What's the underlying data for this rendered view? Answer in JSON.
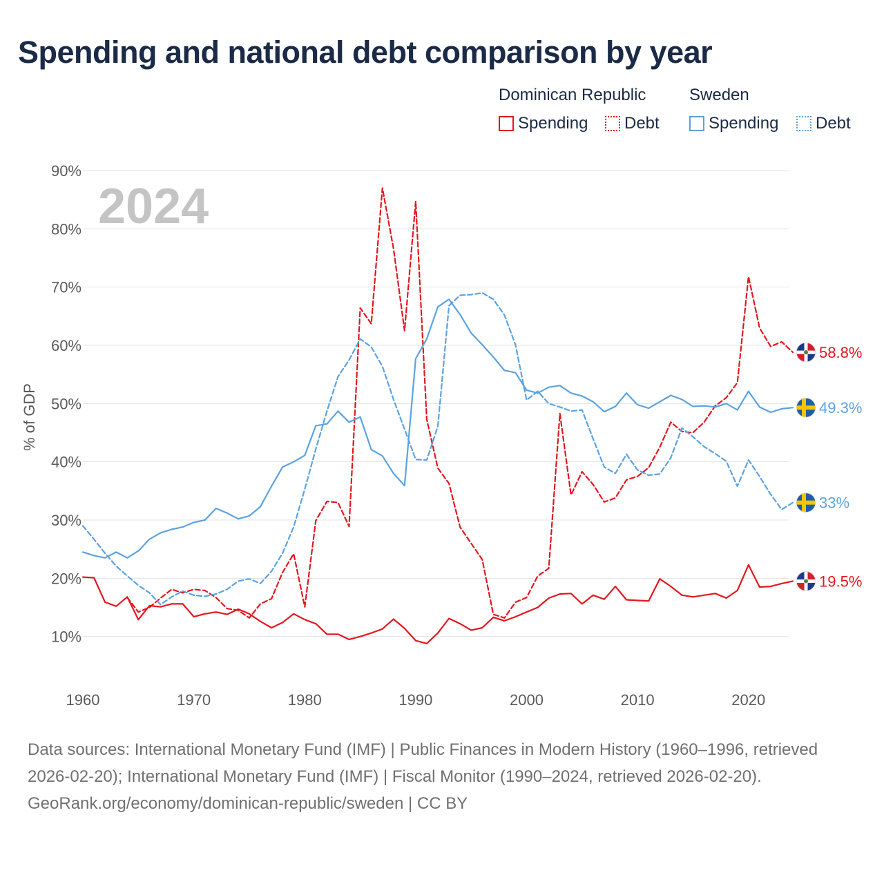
{
  "title": "Spending and national debt comparison by year",
  "legend": {
    "groups": [
      {
        "name": "Dominican Republic",
        "items": [
          {
            "label": "Spending",
            "style": "solid",
            "color": "#e5161e"
          },
          {
            "label": "Debt",
            "style": "dotted",
            "color": "#e5161e"
          }
        ]
      },
      {
        "name": "Sweden",
        "items": [
          {
            "label": "Spending",
            "style": "solid",
            "color": "#5aa2e0"
          },
          {
            "label": "Debt",
            "style": "dotted",
            "color": "#5aa2e0"
          }
        ]
      }
    ]
  },
  "chart_data": {
    "type": "line",
    "year_label": "2024",
    "ylabel": "% of GDP",
    "xlabel": "",
    "xlim": [
      1960,
      2024
    ],
    "ylim": [
      0,
      90
    ],
    "x_ticks": [
      1960,
      1970,
      1980,
      1990,
      2000,
      2010,
      2020
    ],
    "x_tick_labels": [
      "1960",
      "1970",
      "1980",
      "1990",
      "2000",
      "2010",
      "2020"
    ],
    "y_ticks": [
      10,
      20,
      30,
      40,
      50,
      60,
      70,
      80,
      90
    ],
    "y_tick_labels": [
      "10%",
      "20%",
      "30%",
      "40%",
      "50%",
      "60%",
      "70%",
      "80%",
      "90%"
    ],
    "grid": true,
    "series": [
      {
        "name": "Dominican Republic Spending",
        "country": "Dominican Republic",
        "metric": "Spending",
        "color": "#e5161e",
        "dashed": false,
        "start_year": 1960,
        "end_label": "19.5%",
        "flag": "dominican-republic",
        "values": [
          20.2,
          20.1,
          15.9,
          15.2,
          16.8,
          12.9,
          15.3,
          15.1,
          15.6,
          15.6,
          13.4,
          13.9,
          14.2,
          13.8,
          14.7,
          13.9,
          12.6,
          11.5,
          12.4,
          13.9,
          12.9,
          12.2,
          10.4,
          10.4,
          9.5,
          10.0,
          10.6,
          11.3,
          13.0,
          11.4,
          9.3,
          8.8,
          10.6,
          13.1,
          12.2,
          11.1,
          11.5,
          13.3,
          12.7,
          13.4,
          14.2,
          15.0,
          16.6,
          17.3,
          17.4,
          15.6,
          17.1,
          16.4,
          18.6,
          16.3,
          16.2,
          16.1,
          19.9,
          18.6,
          17.1,
          16.8,
          17.1,
          17.4,
          16.6,
          17.9,
          22.3,
          18.5,
          18.6,
          19.1,
          19.5
        ]
      },
      {
        "name": "Dominican Republic Debt",
        "country": "Dominican Republic",
        "metric": "Debt",
        "color": "#e5161e",
        "dashed": true,
        "start_year": 1964,
        "end_label": "58.8%",
        "flag": "dominican-republic",
        "values": [
          16.7,
          14.2,
          15.0,
          16.6,
          18.1,
          17.5,
          18.1,
          17.9,
          16.7,
          14.8,
          14.5,
          13.2,
          15.6,
          16.5,
          21.0,
          24.2,
          15.1,
          29.9,
          33.2,
          33.0,
          28.9,
          66.4,
          63.7,
          87.0,
          76.6,
          62.5,
          84.7,
          47.3,
          38.9,
          36.3,
          28.8,
          26.0,
          23.2,
          13.8,
          13.2,
          15.9,
          16.7,
          20.4,
          21.7,
          48.3,
          34.3,
          38.3,
          36.1,
          33.1,
          33.8,
          36.9,
          37.5,
          39.0,
          42.5,
          46.8,
          45.2,
          45.0,
          46.8,
          49.6,
          51.0,
          53.6,
          71.8,
          63.0,
          59.8,
          60.6,
          58.8
        ]
      },
      {
        "name": "Sweden Spending",
        "country": "Sweden",
        "metric": "Spending",
        "color": "#5aa2e0",
        "dashed": false,
        "start_year": 1960,
        "end_label": "49.3%",
        "flag": "sweden",
        "values": [
          24.5,
          23.9,
          23.5,
          24.5,
          23.5,
          24.7,
          26.7,
          27.8,
          28.4,
          28.8,
          29.6,
          30.0,
          32.0,
          31.2,
          30.2,
          30.7,
          32.3,
          35.8,
          39.1,
          40.0,
          41.1,
          46.2,
          46.5,
          48.7,
          46.8,
          47.7,
          42.1,
          41.0,
          38.0,
          35.9,
          57.7,
          61.1,
          66.6,
          67.9,
          65.3,
          62.1,
          60.1,
          58.0,
          55.7,
          55.3,
          52.3,
          51.8,
          52.8,
          53.1,
          51.8,
          51.3,
          50.3,
          48.6,
          49.5,
          51.8,
          49.8,
          49.2,
          50.3,
          51.4,
          50.7,
          49.5,
          49.6,
          49.4,
          50.0,
          48.9,
          52.1,
          49.4,
          48.5,
          49.1,
          49.3
        ]
      },
      {
        "name": "Sweden Debt",
        "country": "Sweden",
        "metric": "Debt",
        "color": "#5aa2e0",
        "dashed": true,
        "start_year": 1960,
        "end_label": "33%",
        "flag": "sweden",
        "values": [
          29.0,
          26.7,
          24.3,
          22.1,
          20.4,
          18.8,
          17.5,
          15.5,
          16.8,
          17.8,
          17.1,
          16.9,
          17.3,
          18.1,
          19.5,
          19.9,
          19.1,
          21.2,
          24.3,
          28.8,
          35.3,
          42.2,
          48.7,
          54.6,
          57.5,
          61.1,
          59.7,
          56.4,
          50.7,
          45.6,
          40.4,
          40.3,
          46.1,
          66.8,
          68.6,
          68.7,
          69.0,
          67.9,
          65.2,
          60.1,
          50.6,
          52.1,
          50.0,
          49.4,
          48.7,
          48.9,
          43.9,
          39.1,
          38.0,
          41.3,
          38.6,
          37.7,
          37.9,
          40.7,
          45.8,
          44.3,
          42.6,
          41.4,
          40.1,
          35.8,
          40.3,
          37.5,
          34.4,
          31.8,
          33.0
        ]
      }
    ]
  },
  "footer": {
    "sources": "Data sources: International Monetary Fund (IMF) | Public Finances in Modern History (1960–1996, retrieved 2026-02-20); International Monetary Fund (IMF) | Fiscal Monitor (1990–2024, retrieved 2026-02-20).",
    "credit": "GeoRank.org/economy/dominican-republic/sweden | CC BY"
  }
}
